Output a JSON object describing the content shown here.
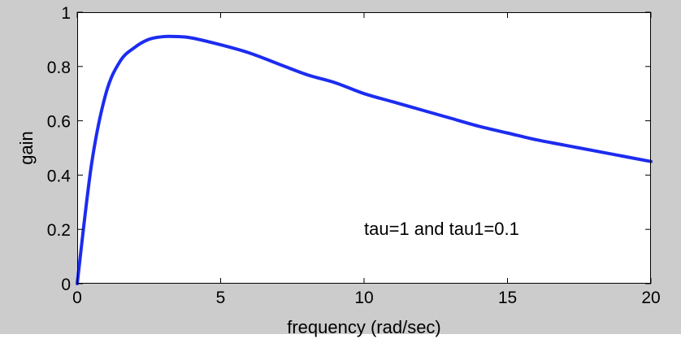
{
  "chart_data": {
    "type": "line",
    "title": "",
    "xlabel": "frequency (rad/sec)",
    "ylabel": "gain",
    "xlim": [
      0,
      20
    ],
    "ylim": [
      0,
      1
    ],
    "x_ticks": [
      0,
      5,
      10,
      15,
      20
    ],
    "x_tick_labels": [
      "0",
      "5",
      "10",
      "15",
      "20"
    ],
    "y_ticks": [
      0,
      0.2,
      0.4,
      0.6,
      0.8,
      1
    ],
    "y_tick_labels": [
      "0",
      "0.2",
      "0.4",
      "0.6",
      "0.8",
      "1"
    ],
    "grid": false,
    "series": [
      {
        "color": "#1c2cf0",
        "x": [
          0,
          0.5,
          1,
          1.5,
          2,
          2.5,
          3,
          3.5,
          4,
          5,
          6,
          7,
          8,
          9,
          10,
          11,
          12,
          13,
          14,
          15,
          16,
          17,
          18,
          19,
          20
        ],
        "y": [
          0,
          0.44,
          0.7,
          0.82,
          0.87,
          0.9,
          0.91,
          0.91,
          0.905,
          0.88,
          0.85,
          0.81,
          0.77,
          0.74,
          0.7,
          0.67,
          0.64,
          0.61,
          0.58,
          0.555,
          0.53,
          0.51,
          0.49,
          0.47,
          0.45
        ]
      }
    ],
    "annotations": [
      {
        "text": "tau=1 and tau1=0.1",
        "x": 10,
        "y": 0.2
      }
    ]
  }
}
